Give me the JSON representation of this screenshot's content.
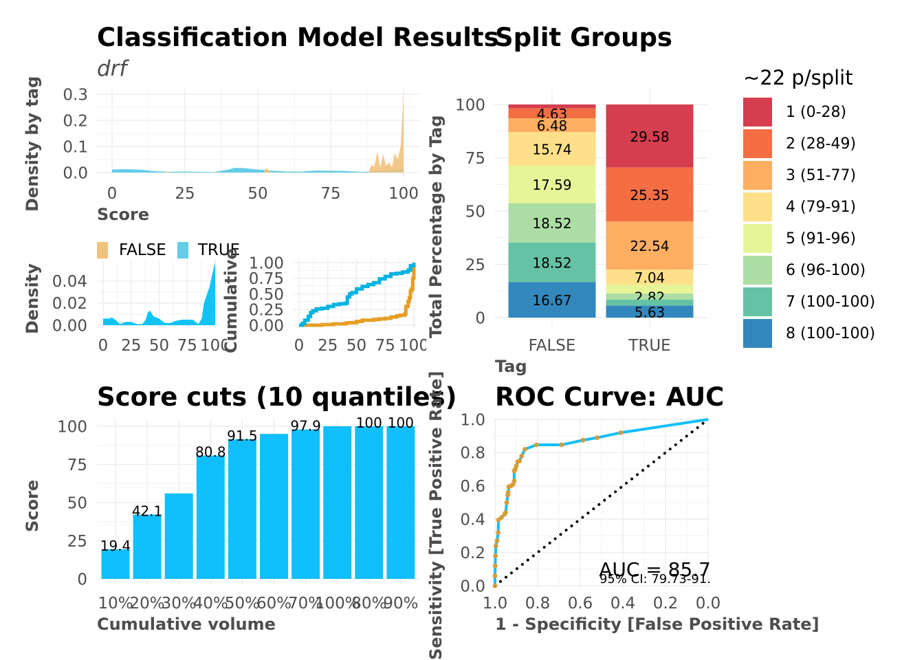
{
  "titles": {
    "main": "Classification Model Results",
    "model": "drf",
    "split": "Split Groups",
    "cuts": "Score cuts (10 quantiles)",
    "roc": "ROC Curve: AUC"
  },
  "colors": {
    "false": "#E69F25",
    "false_fill": "#F1C27D",
    "true": "#00B3E0",
    "true_fill": "#64CDE8",
    "bar": "#10BFFC",
    "grid": "#EBEBEB",
    "axis_text": "#4d4d4d"
  },
  "chart_data": [
    {
      "id": "density-by-tag",
      "type": "area",
      "xlabel": "Score",
      "ylabel": "Density by tag",
      "xlim": [
        0,
        100
      ],
      "ylim": [
        0,
        0.3
      ],
      "xticks": [
        "0",
        "25",
        "50",
        "75",
        "100"
      ],
      "yticks": [
        "0.0",
        "0.1",
        "0.2",
        "0.3"
      ],
      "legend": {
        "position": "bottom",
        "entries": [
          "FALSE",
          "TRUE"
        ]
      },
      "series": [
        {
          "name": "TRUE",
          "x": [
            0,
            5,
            10,
            15,
            20,
            25,
            30,
            35,
            40,
            42,
            45,
            50,
            55,
            60,
            65,
            70,
            75,
            80,
            85,
            88,
            90,
            95,
            100
          ],
          "y": [
            0.012,
            0.013,
            0.011,
            0.005,
            0.003,
            0.004,
            0.003,
            0.002,
            0.012,
            0.018,
            0.017,
            0.012,
            0.007,
            0.004,
            0.004,
            0.008,
            0.007,
            0.006,
            0.003,
            0.003,
            0.006,
            0.01,
            0.014
          ]
        },
        {
          "name": "FALSE",
          "x": [
            0,
            18,
            19,
            20,
            21,
            50,
            52,
            53,
            54,
            56,
            88,
            89,
            90,
            91,
            92,
            93,
            94,
            95,
            96,
            97,
            98,
            99,
            100
          ],
          "y": [
            0,
            0,
            0.004,
            0,
            0,
            0,
            0,
            0.019,
            0.004,
            0,
            0,
            0.03,
            0.022,
            0.08,
            0.02,
            0.07,
            0.025,
            0.04,
            0.02,
            0.075,
            0.05,
            0.1,
            0.3
          ]
        }
      ]
    },
    {
      "id": "density-true",
      "type": "area",
      "xlabel": "",
      "ylabel": "Density",
      "xlim": [
        0,
        100
      ],
      "ylim": [
        0,
        0.058
      ],
      "xticks": [
        "0",
        "25",
        "50",
        "75",
        "100"
      ],
      "yticks": [
        "0.00",
        "0.02",
        "0.04"
      ],
      "series": [
        {
          "name": "TRUE",
          "x": [
            0,
            5,
            8,
            12,
            15,
            20,
            25,
            30,
            35,
            38,
            40,
            42,
            45,
            50,
            55,
            60,
            65,
            70,
            75,
            80,
            85,
            88,
            90,
            93,
            95,
            97,
            100
          ],
          "y": [
            0.006,
            0.006,
            0.007,
            0.004,
            0.001,
            0.003,
            0.003,
            0.001,
            0.001,
            0.005,
            0.012,
            0.013,
            0.008,
            0.006,
            0.002,
            0.002,
            0.004,
            0.005,
            0.005,
            0.005,
            0.001,
            0.006,
            0.02,
            0.029,
            0.035,
            0.045,
            0.057
          ]
        }
      ]
    },
    {
      "id": "cumulative",
      "type": "line",
      "xlabel": "",
      "ylabel": "Cumulative",
      "xlim": [
        0,
        100
      ],
      "ylim": [
        0,
        1
      ],
      "xticks": [
        "0",
        "25",
        "50",
        "75",
        "100"
      ],
      "yticks": [
        "0.00",
        "0.25",
        "0.50",
        "0.75",
        "1.00"
      ],
      "series": [
        {
          "name": "TRUE",
          "x": [
            0,
            3,
            5,
            8,
            10,
            12,
            15,
            20,
            25,
            30,
            35,
            40,
            42,
            44,
            46,
            50,
            55,
            60,
            65,
            70,
            75,
            80,
            85,
            90,
            95,
            97,
            100
          ],
          "y": [
            0,
            0.03,
            0.08,
            0.14,
            0.2,
            0.23,
            0.26,
            0.27,
            0.3,
            0.33,
            0.34,
            0.35,
            0.45,
            0.5,
            0.52,
            0.58,
            0.62,
            0.65,
            0.68,
            0.74,
            0.78,
            0.82,
            0.83,
            0.85,
            0.88,
            0.95,
            1.0
          ]
        },
        {
          "name": "FALSE",
          "x": [
            0,
            5,
            15,
            20,
            30,
            40,
            42,
            50,
            55,
            65,
            70,
            75,
            80,
            85,
            88,
            92,
            93,
            95,
            96,
            97,
            98,
            99,
            100
          ],
          "y": [
            0,
            0,
            0,
            0.01,
            0.02,
            0.03,
            0.04,
            0.06,
            0.08,
            0.09,
            0.1,
            0.11,
            0.13,
            0.15,
            0.16,
            0.18,
            0.3,
            0.38,
            0.44,
            0.55,
            0.58,
            0.75,
            1.0
          ]
        }
      ]
    },
    {
      "id": "split-groups",
      "type": "bar",
      "stacked": true,
      "xlabel": "Tag",
      "ylabel": "Total Percentage by Tag",
      "ylim": [
        0,
        100
      ],
      "yticks": [
        "0",
        "25",
        "50",
        "75",
        "100"
      ],
      "categories": [
        "FALSE",
        "TRUE"
      ],
      "legend": {
        "title": "~22 p/split",
        "position": "right"
      },
      "series": [
        {
          "name": "1 (0-28)",
          "color": "#D53E4F",
          "values": [
            1.85,
            29.58
          ],
          "labels": [
            "",
            "29.58"
          ]
        },
        {
          "name": "2 (28-49)",
          "color": "#F46D43",
          "values": [
            4.63,
            25.35
          ],
          "labels": [
            "4.63",
            "25.35"
          ]
        },
        {
          "name": "3 (51-77)",
          "color": "#FDAE61",
          "values": [
            6.48,
            22.54
          ],
          "labels": [
            "6.48",
            "22.54"
          ]
        },
        {
          "name": "4 (79-91)",
          "color": "#FEE08B",
          "values": [
            15.74,
            7.04
          ],
          "labels": [
            "15.74",
            "7.04"
          ]
        },
        {
          "name": "5 (91-96)",
          "color": "#E6F598",
          "values": [
            17.59,
            4.23
          ],
          "labels": [
            "17.59",
            ""
          ]
        },
        {
          "name": "6 (96-100)",
          "color": "#ABDDA4",
          "values": [
            18.52,
            2.82
          ],
          "labels": [
            "18.52",
            "2.82"
          ]
        },
        {
          "name": "7 (100-100)",
          "color": "#66C2A5",
          "values": [
            18.52,
            2.82
          ],
          "labels": [
            "18.52",
            ""
          ]
        },
        {
          "name": "8 (100-100)",
          "color": "#3288BD",
          "values": [
            16.67,
            5.63
          ],
          "labels": [
            "16.67",
            "5.63"
          ]
        }
      ]
    },
    {
      "id": "score-cuts",
      "type": "bar",
      "xlabel": "Cumulative volume",
      "ylabel": "Score",
      "ylim": [
        0,
        100
      ],
      "yticks": [
        "0",
        "25",
        "50",
        "75",
        "100"
      ],
      "categories": [
        "10%",
        "20%",
        "30%",
        "40%",
        "50%",
        "60%",
        "70%",
        "100%",
        "80%",
        "90%"
      ],
      "values": [
        19.4,
        42.1,
        56.0,
        80.8,
        91.5,
        95.0,
        97.9,
        100,
        100,
        100
      ],
      "labels": [
        "19.4",
        "42.1",
        "",
        "80.8",
        "91.5",
        "",
        "97.9",
        "",
        "100",
        "100"
      ]
    },
    {
      "id": "roc",
      "type": "line",
      "xlabel": "1 - Specificity [False Positive Rate]",
      "ylabel": "Sensitivity [True Positive Rate]",
      "xlim": [
        1,
        0
      ],
      "ylim": [
        0,
        1
      ],
      "xticks": [
        "1.0",
        "0.8",
        "0.6",
        "0.4",
        "0.2",
        "0.0"
      ],
      "yticks": [
        "0.0",
        "0.2",
        "0.4",
        "0.6",
        "0.8",
        "1.0"
      ],
      "series": [
        {
          "name": "ROC",
          "specificity": [
            1.0,
            1.0,
            0.999,
            0.998,
            0.996,
            0.99,
            0.985,
            0.984,
            0.97,
            0.955,
            0.95,
            0.945,
            0.94,
            0.938,
            0.935,
            0.925,
            0.915,
            0.91,
            0.91,
            0.905,
            0.9,
            0.894,
            0.885,
            0.875,
            0.86,
            0.806,
            0.687,
            0.587,
            0.52,
            0.41,
            0.0
          ],
          "sensitivity": [
            0.0,
            0.06,
            0.12,
            0.18,
            0.24,
            0.27,
            0.32,
            0.395,
            0.41,
            0.43,
            0.44,
            0.5,
            0.545,
            0.56,
            0.595,
            0.6,
            0.61,
            0.63,
            0.69,
            0.7,
            0.72,
            0.745,
            0.75,
            0.78,
            0.82,
            0.847,
            0.847,
            0.875,
            0.89,
            0.92,
            1.0
          ]
        },
        {
          "name": "random",
          "specificity": [
            1,
            0
          ],
          "sensitivity": [
            0,
            1
          ]
        }
      ],
      "annotations": [
        "AUC = 85.7",
        "95% CI: 79.73-91."
      ]
    }
  ]
}
